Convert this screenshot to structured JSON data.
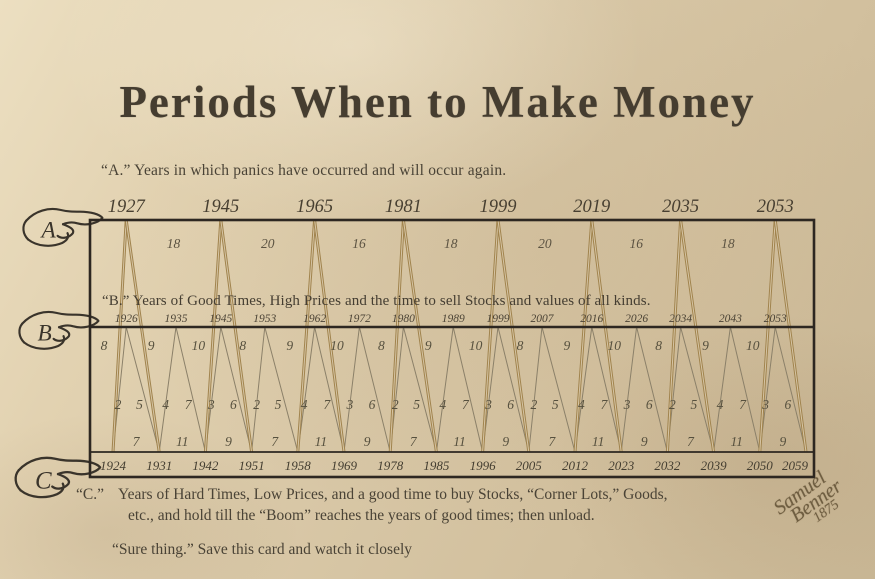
{
  "title": "Periods When to Make Money",
  "captions": {
    "a": "“A.” Years in which panics have occurred and will occur again.",
    "b": "“B.” Years of Good Times, High Prices and the time to sell Stocks and values of all kinds.",
    "c_label": "“C.”",
    "c_line1": "Years of Hard Times, Low Prices, and a good time to buy Stocks, “Corner Lots,” Goods,",
    "c_line2": "etc., and hold till  the “Boom” reaches the years of good times; then unload.",
    "footer": "“Sure thing.” Save this card and watch it closely"
  },
  "pointers": [
    {
      "letter": "A"
    },
    {
      "letter": "B"
    },
    {
      "letter": "C"
    }
  ],
  "signature": {
    "first": "Samuel",
    "last": "Benner",
    "year": "1875"
  },
  "colors": {
    "paper": "#d8c7a6",
    "ink": "#453d30",
    "gold_line": "#a0834d",
    "gray_line": "#8b8069",
    "frame": "#2d2721"
  },
  "chart_data": {
    "type": "line",
    "title": "Benner cycle of panics, good times and hard times",
    "panic_years": [
      1927,
      1945,
      1965,
      1981,
      1999,
      2019,
      2035,
      2053
    ],
    "panic_intervals": [
      18,
      20,
      16,
      18,
      20,
      16,
      18
    ],
    "good_times_years": [
      1926,
      1935,
      1945,
      1953,
      1962,
      1972,
      1980,
      1989,
      1999,
      2007,
      2016,
      2026,
      2034,
      2043,
      2053
    ],
    "good_times_intervals": [
      8,
      9,
      10,
      8,
      9,
      10,
      8,
      9,
      10,
      8,
      9,
      10,
      8,
      9,
      10
    ],
    "updown_pairs": [
      [
        2,
        5
      ],
      [
        4,
        7
      ],
      [
        3,
        6
      ],
      [
        2,
        5
      ],
      [
        4,
        7
      ],
      [
        3,
        6
      ],
      [
        2,
        5
      ],
      [
        4,
        7
      ],
      [
        3,
        6
      ],
      [
        2,
        5
      ],
      [
        4,
        7
      ],
      [
        3,
        6
      ],
      [
        2,
        5
      ],
      [
        4,
        7
      ],
      [
        3,
        6
      ]
    ],
    "hard_times_years": [
      1924,
      1931,
      1942,
      1951,
      1958,
      1969,
      1978,
      1985,
      1996,
      2005,
      2012,
      2023,
      2032,
      2039,
      2050,
      2059
    ],
    "hard_times_intervals": [
      7,
      11,
      9,
      7,
      11,
      9,
      7,
      11,
      9,
      7,
      11,
      9,
      7,
      11,
      9
    ]
  }
}
